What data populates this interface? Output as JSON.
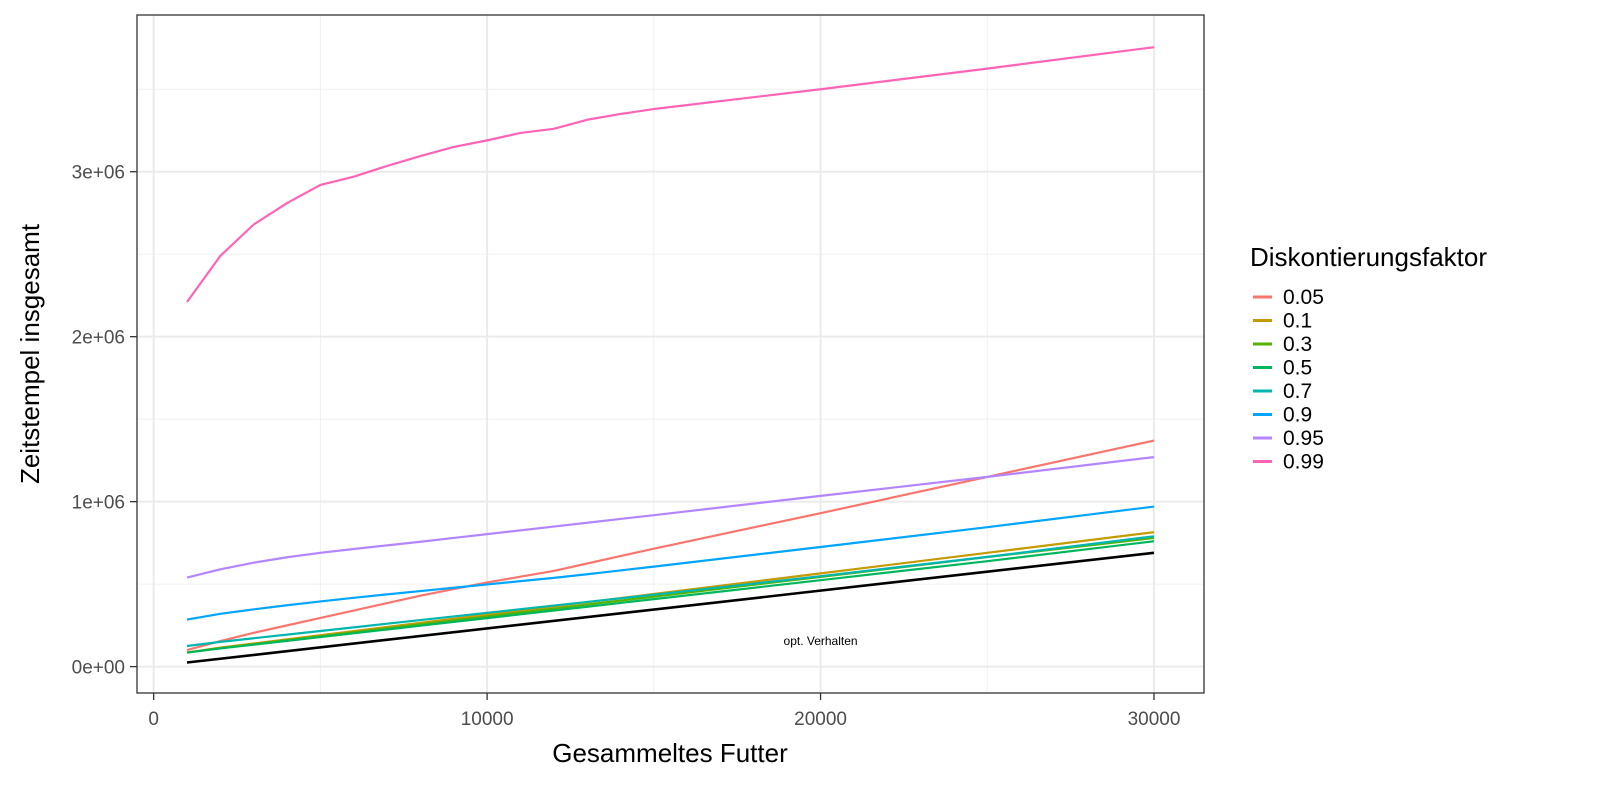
{
  "chart_data": {
    "type": "line",
    "title": "",
    "xlabel": "Gesammeltes Futter",
    "ylabel": "Zeitstempel insgesamt",
    "xlim": [
      -500,
      31500
    ],
    "ylim": [
      -160000,
      3950000
    ],
    "x_ticks": [
      0,
      10000,
      20000,
      30000
    ],
    "x_tick_labels": [
      "0",
      "10000",
      "20000",
      "30000"
    ],
    "y_ticks": [
      0,
      1000000,
      2000000,
      3000000
    ],
    "y_tick_labels": [
      "0e+00",
      "1e+06",
      "2e+06",
      "3e+06"
    ],
    "grid": true,
    "legend": {
      "title": "Diskontierungsfaktor",
      "position": "right"
    },
    "x": [
      1000,
      2000,
      3000,
      4000,
      5000,
      6000,
      7000,
      8000,
      9000,
      10000,
      11000,
      12000,
      13000,
      14000,
      15000,
      20000,
      25000,
      30000
    ],
    "series": [
      {
        "name": "0.05",
        "color": "#F8766D",
        "values": [
          100000,
          155000,
          205000,
          250000,
          295000,
          340000,
          385000,
          430000,
          470000,
          510000,
          545000,
          580000,
          625000,
          670000,
          715000,
          930000,
          1150000,
          1370000
        ]
      },
      {
        "name": "0.1",
        "color": "#C49A00",
        "values": [
          85000,
          115000,
          140000,
          165000,
          190000,
          215000,
          240000,
          265000,
          290000,
          315000,
          340000,
          365000,
          390000,
          415000,
          440000,
          565000,
          690000,
          815000
        ]
      },
      {
        "name": "0.3",
        "color": "#53B400",
        "values": [
          85000,
          112000,
          136000,
          160000,
          184000,
          208000,
          232000,
          256000,
          280000,
          304000,
          328000,
          352000,
          376000,
          400000,
          424000,
          544000,
          664000,
          780000
        ]
      },
      {
        "name": "0.5",
        "color": "#00B65D",
        "values": [
          85000,
          110000,
          133000,
          156000,
          179000,
          202000,
          225000,
          248000,
          271000,
          294000,
          317000,
          340000,
          363000,
          386000,
          409000,
          524000,
          639000,
          760000
        ]
      },
      {
        "name": "0.7",
        "color": "#00B6AE",
        "values": [
          125000,
          150000,
          172000,
          194000,
          216000,
          238000,
          260000,
          282000,
          304000,
          326000,
          348000,
          370000,
          392000,
          414000,
          436000,
          548000,
          665000,
          790000
        ]
      },
      {
        "name": "0.9",
        "color": "#00A5FF",
        "values": [
          285000,
          320000,
          347000,
          372000,
          395000,
          417000,
          438000,
          458000,
          478000,
          498000,
          518000,
          538000,
          560000,
          583000,
          606000,
          725000,
          845000,
          970000
        ]
      },
      {
        "name": "0.95",
        "color": "#B385FF",
        "values": [
          540000,
          590000,
          630000,
          663000,
          690000,
          713000,
          735000,
          757000,
          780000,
          803000,
          826000,
          849000,
          872000,
          895000,
          918000,
          1035000,
          1150000,
          1270000
        ]
      },
      {
        "name": "0.99",
        "color": "#FF63B6",
        "values": [
          2210000,
          2490000,
          2680000,
          2810000,
          2920000,
          2970000,
          3035000,
          3095000,
          3150000,
          3190000,
          3235000,
          3260000,
          3315000,
          3350000,
          3380000,
          3500000,
          3625000,
          3755000
        ]
      }
    ],
    "reference_line": {
      "label": "opt. Verhalten",
      "color": "#000000",
      "x": [
        1000,
        30000
      ],
      "values": [
        25000,
        690000
      ],
      "label_at": [
        20000,
        130000
      ]
    }
  }
}
